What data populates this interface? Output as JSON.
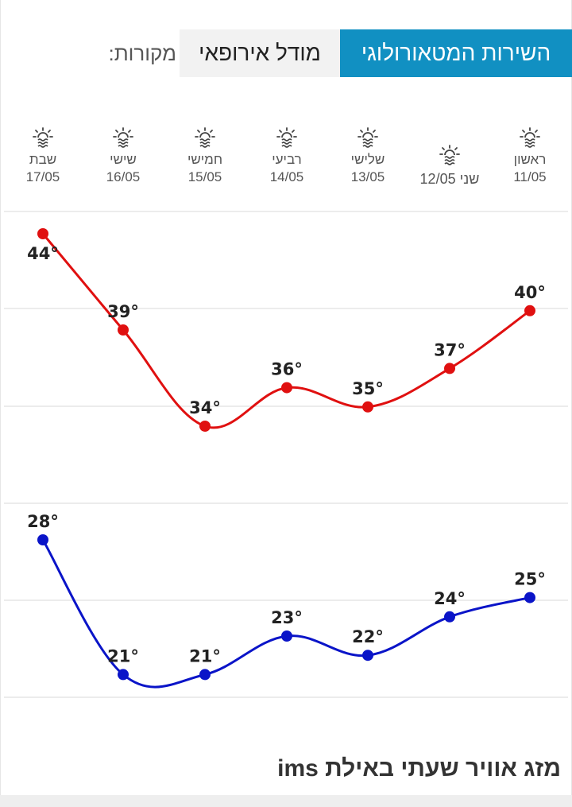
{
  "sources": {
    "label": "מקורות:",
    "options": [
      {
        "label": "מודל אירופאי",
        "active": false
      },
      {
        "label": "השירות המטאורולוגי",
        "active": true
      }
    ]
  },
  "days": [
    {
      "name": "ראשון",
      "date": "11/05",
      "icon": "sun-haze-icon"
    },
    {
      "name": "שני",
      "date": "12/05",
      "icon": "sun-haze-icon"
    },
    {
      "name": "שלישי",
      "date": "13/05",
      "icon": "sun-haze-icon"
    },
    {
      "name": "רביעי",
      "date": "14/05",
      "icon": "sun-haze-icon"
    },
    {
      "name": "חמישי",
      "date": "15/05",
      "icon": "sun-haze-icon"
    },
    {
      "name": "שישי",
      "date": "16/05",
      "icon": "sun-haze-icon"
    },
    {
      "name": "שבת",
      "date": "17/05",
      "icon": "sun-haze-icon"
    }
  ],
  "chart_data": {
    "type": "line",
    "categories": [
      "11/05",
      "12/05",
      "13/05",
      "14/05",
      "15/05",
      "16/05",
      "17/05"
    ],
    "x_direction": "right-to-left",
    "unit": "°",
    "grid": true,
    "series": [
      {
        "key": "max",
        "color": "#e01010",
        "values": [
          40,
          37,
          35,
          36,
          34,
          39,
          44
        ]
      },
      {
        "key": "min",
        "color": "#0a14c8",
        "values": [
          25,
          24,
          22,
          23,
          21,
          21,
          28
        ]
      }
    ]
  },
  "footer": {
    "title": "מזג אוויר שעתי באילת ims"
  }
}
